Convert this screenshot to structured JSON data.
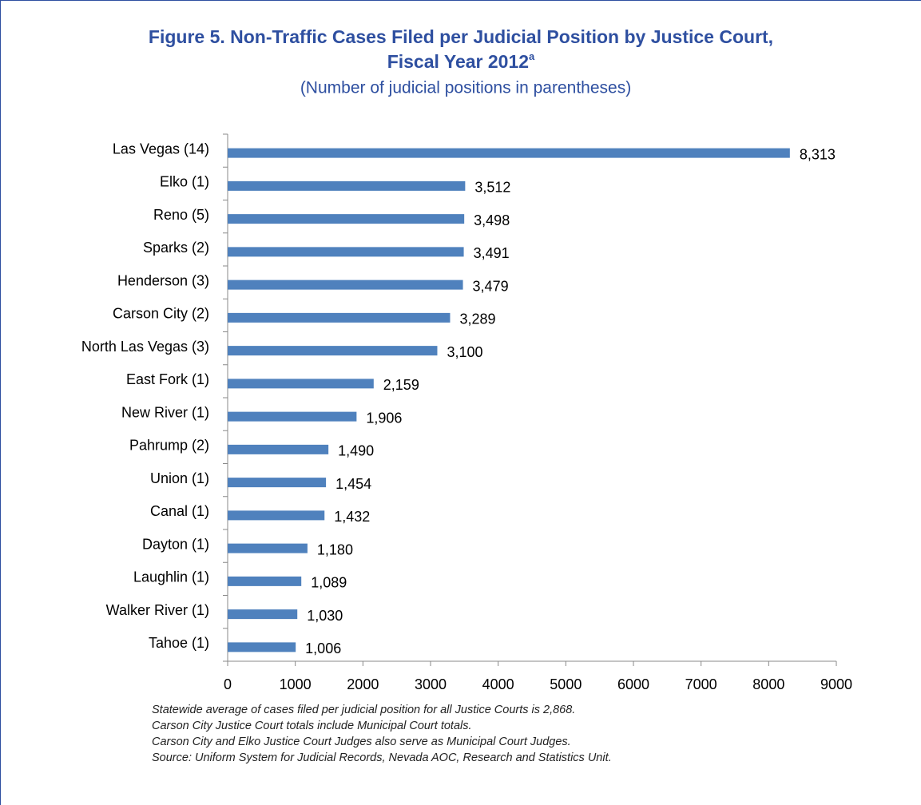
{
  "chart_data": {
    "type": "barh",
    "title": [
      "Figure 5. Non-Traffic Cases Filed per Judicial Position by Justice Court,",
      "Fiscal Year 2012"
    ],
    "title_superscript": "a",
    "subtitle": "(Number of judicial positions in parentheses)",
    "categories": [
      "Las Vegas (14)",
      "Elko (1)",
      "Reno (5)",
      "Sparks (2)",
      "Henderson (3)",
      "Carson City (2)",
      "North Las Vegas (3)",
      "East Fork (1)",
      "New River (1)",
      "Pahrump (2)",
      "Union (1)",
      "Canal (1)",
      "Dayton (1)",
      "Laughlin (1)",
      "Walker River (1)",
      "Tahoe (1)"
    ],
    "values": [
      8313,
      3512,
      3498,
      3491,
      3479,
      3289,
      3100,
      2159,
      1906,
      1490,
      1454,
      1432,
      1180,
      1089,
      1030,
      1006
    ],
    "value_labels": [
      "8,313",
      "3,512",
      "3,498",
      "3,491",
      "3,479",
      "3,289",
      "3,100",
      "2,159",
      "1,906",
      "1,490",
      "1,454",
      "1,432",
      "1,180",
      "1,089",
      "1,030",
      "1,006"
    ],
    "color": "#4f81bd",
    "xlim": [
      0,
      9000
    ],
    "xticks": [
      0,
      1000,
      2000,
      3000,
      4000,
      5000,
      6000,
      7000,
      8000,
      9000
    ],
    "grid": false,
    "notes": [
      "Statewide average of cases filed per judicial position for all Justice Courts is 2,868.",
      "Carson City Justice Court totals include Municipal Court totals.",
      "Carson City and Elko Justice Court Judges also serve as Municipal Court Judges.",
      "Source: Uniform System for Judicial Records, Nevada AOC, Research and Statistics Unit."
    ]
  }
}
